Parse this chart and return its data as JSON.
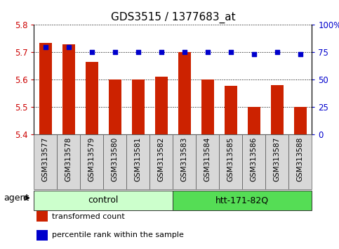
{
  "title": "GDS3515 / 1377683_at",
  "samples": [
    "GSM313577",
    "GSM313578",
    "GSM313579",
    "GSM313580",
    "GSM313581",
    "GSM313582",
    "GSM313583",
    "GSM313584",
    "GSM313585",
    "GSM313586",
    "GSM313587",
    "GSM313588"
  ],
  "red_values": [
    5.733,
    5.73,
    5.665,
    5.6,
    5.6,
    5.61,
    5.7,
    5.6,
    5.578,
    5.5,
    5.58,
    5.5
  ],
  "blue_values": [
    80,
    80,
    75,
    75,
    75,
    75,
    75,
    75,
    75,
    73,
    75,
    73
  ],
  "ylim_left": [
    5.4,
    5.8
  ],
  "ylim_right": [
    0,
    100
  ],
  "yticks_left": [
    5.4,
    5.5,
    5.6,
    5.7,
    5.8
  ],
  "yticks_right": [
    0,
    25,
    50,
    75,
    100
  ],
  "ytick_labels_right": [
    "0",
    "25",
    "50",
    "75",
    "100%"
  ],
  "groups": [
    {
      "label": "control",
      "start": 0,
      "end": 6,
      "color": "#ccffcc"
    },
    {
      "label": "htt-171-82Q",
      "start": 6,
      "end": 12,
      "color": "#55dd55"
    }
  ],
  "agent_label": "agent",
  "legend_items": [
    {
      "color": "#cc2200",
      "label": "transformed count"
    },
    {
      "color": "#0000cc",
      "label": "percentile rank within the sample"
    }
  ],
  "bar_color": "#cc2200",
  "dot_color": "#0000cc",
  "bar_width": 0.55,
  "background_color": "#ffffff",
  "title_fontsize": 11,
  "tick_fontsize": 8.5,
  "sample_fontsize": 7.5
}
